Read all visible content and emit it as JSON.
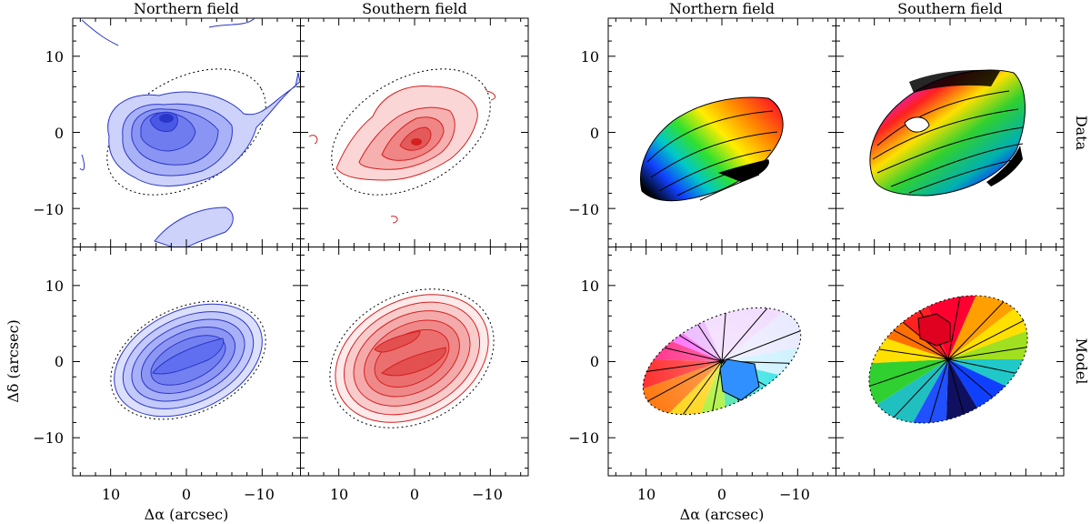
{
  "columns": {
    "north_left": "Northern field",
    "south_left": "Southern field",
    "north_right": "Northern field",
    "south_right": "Southern field"
  },
  "rows": {
    "data": "Data",
    "model": "Model"
  },
  "axes": {
    "xlabel_left": "Δα (arcsec)",
    "xlabel_right": "Δα (arcsec)",
    "ylabel": "Δδ (arcsec)",
    "xticks": [
      "10",
      "0",
      "−10"
    ],
    "yticks": [
      "10",
      "0",
      "−10"
    ]
  },
  "colors": {
    "blue_fill": "#5f6ff0",
    "blue_line": "#2a36c8",
    "red_fill": "#ec5a5a",
    "red_line": "#d62020"
  },
  "chart_data": {
    "type": "heatmap",
    "xlim": [
      15,
      -15
    ],
    "ylim": [
      -15,
      15
    ],
    "panels": [
      {
        "column": "Northern field",
        "row": "Data",
        "map": "intensity"
      },
      {
        "column": "Southern field",
        "row": "Data",
        "map": "intensity"
      },
      {
        "column": "Northern field",
        "row": "Model",
        "map": "intensity"
      },
      {
        "column": "Southern field",
        "row": "Model",
        "map": "intensity"
      },
      {
        "column": "Northern field",
        "row": "Data",
        "map": "velocity"
      },
      {
        "column": "Southern field",
        "row": "Data",
        "map": "velocity"
      },
      {
        "column": "Northern field",
        "row": "Model",
        "map": "velocity"
      },
      {
        "column": "Southern field",
        "row": "Model",
        "map": "velocity"
      }
    ]
  }
}
